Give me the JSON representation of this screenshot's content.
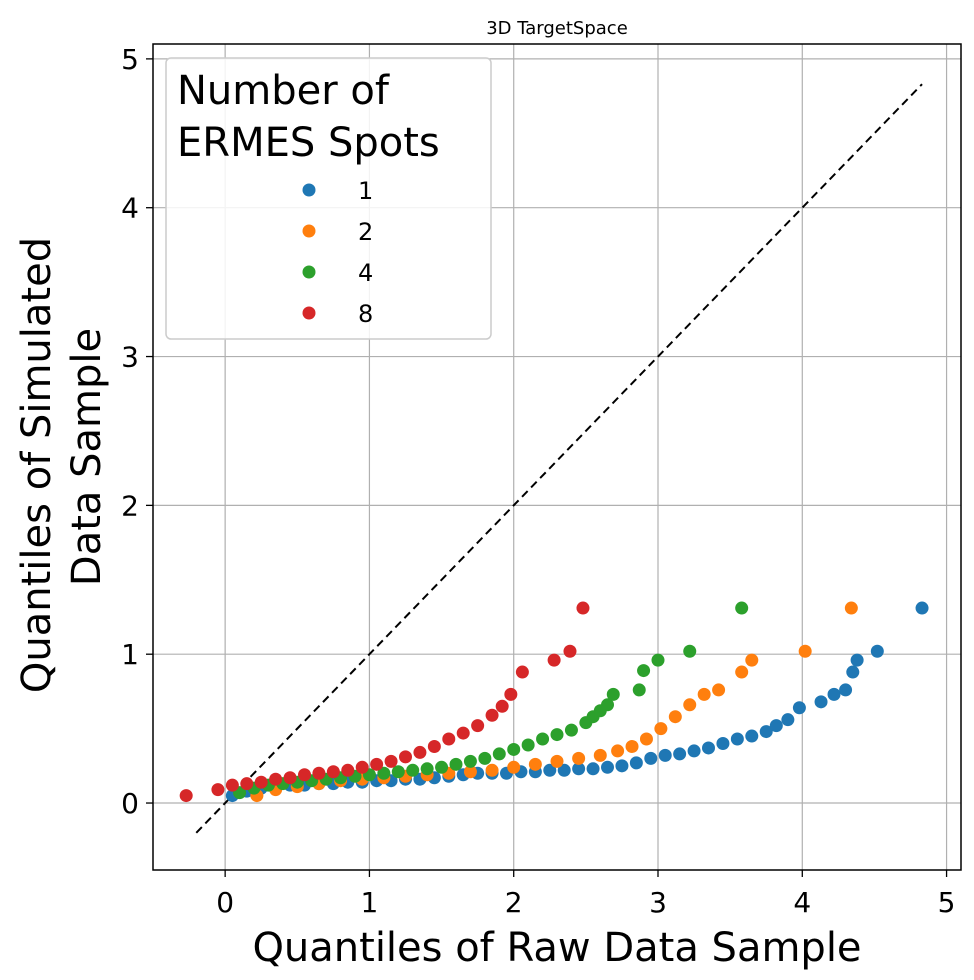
{
  "chart_data": {
    "type": "scatter",
    "title": "3D TargetSpace",
    "xlabel": "Quantiles of Raw Data Sample",
    "ylabel_lines": [
      "Quantiles of Simulated",
      "Data Sample"
    ],
    "xlim": [
      -0.5,
      5.1
    ],
    "ylim": [
      -0.45,
      5.1
    ],
    "xticks": [
      "0",
      "1",
      "2",
      "3",
      "4",
      "5"
    ],
    "yticks": [
      "0",
      "1",
      "2",
      "3",
      "4",
      "5"
    ],
    "grid": true,
    "legend": {
      "placement": "top-left",
      "title_lines": [
        "Number of",
        "ERMES Spots"
      ]
    },
    "reference_line": {
      "style": "dashed",
      "color": "#000000",
      "x": [
        -0.2,
        4.83
      ],
      "y": [
        -0.2,
        4.83
      ]
    },
    "series": [
      {
        "name": "1",
        "color": "#1f77b4",
        "x": [
          0.05,
          0.15,
          0.25,
          0.35,
          0.45,
          0.55,
          0.65,
          0.75,
          0.85,
          0.95,
          1.05,
          1.15,
          1.25,
          1.35,
          1.45,
          1.55,
          1.65,
          1.75,
          1.85,
          1.95,
          2.05,
          2.15,
          2.25,
          2.35,
          2.45,
          2.55,
          2.65,
          2.75,
          2.85,
          2.95,
          3.05,
          3.15,
          3.25,
          3.35,
          3.45,
          3.55,
          3.65,
          3.75,
          3.82,
          3.9,
          3.98,
          4.13,
          4.22,
          4.3,
          4.35,
          4.38,
          4.52,
          4.83
        ],
        "y": [
          0.05,
          0.08,
          0.1,
          0.11,
          0.12,
          0.12,
          0.13,
          0.13,
          0.14,
          0.14,
          0.15,
          0.15,
          0.16,
          0.16,
          0.17,
          0.18,
          0.19,
          0.2,
          0.2,
          0.2,
          0.21,
          0.21,
          0.22,
          0.22,
          0.23,
          0.23,
          0.24,
          0.25,
          0.27,
          0.3,
          0.32,
          0.33,
          0.35,
          0.37,
          0.4,
          0.43,
          0.45,
          0.48,
          0.52,
          0.56,
          0.64,
          0.68,
          0.73,
          0.76,
          0.88,
          0.96,
          1.02,
          1.31
        ]
      },
      {
        "name": "2",
        "color": "#ff7f0e",
        "x": [
          0.22,
          0.35,
          0.5,
          0.65,
          0.8,
          0.95,
          1.1,
          1.25,
          1.4,
          1.55,
          1.7,
          1.85,
          2.0,
          2.15,
          2.3,
          2.45,
          2.6,
          2.72,
          2.82,
          2.92,
          3.02,
          3.12,
          3.22,
          3.32,
          3.42,
          3.58,
          3.65,
          4.02,
          4.34
        ],
        "y": [
          0.05,
          0.09,
          0.11,
          0.13,
          0.15,
          0.16,
          0.17,
          0.18,
          0.19,
          0.2,
          0.21,
          0.22,
          0.24,
          0.26,
          0.28,
          0.3,
          0.32,
          0.35,
          0.38,
          0.43,
          0.5,
          0.58,
          0.66,
          0.73,
          0.76,
          0.88,
          0.96,
          1.02,
          1.31
        ]
      },
      {
        "name": "4",
        "color": "#2ca02c",
        "x": [
          0.1,
          0.2,
          0.3,
          0.4,
          0.5,
          0.6,
          0.7,
          0.8,
          0.9,
          1.0,
          1.1,
          1.2,
          1.3,
          1.4,
          1.5,
          1.6,
          1.7,
          1.8,
          1.9,
          2.0,
          2.1,
          2.2,
          2.3,
          2.4,
          2.5,
          2.55,
          2.6,
          2.65,
          2.69,
          2.87,
          2.9,
          3.0,
          3.22,
          3.58
        ],
        "y": [
          0.07,
          0.1,
          0.12,
          0.13,
          0.14,
          0.15,
          0.16,
          0.17,
          0.18,
          0.19,
          0.2,
          0.21,
          0.22,
          0.23,
          0.24,
          0.26,
          0.28,
          0.3,
          0.33,
          0.36,
          0.39,
          0.43,
          0.46,
          0.49,
          0.54,
          0.58,
          0.62,
          0.66,
          0.73,
          0.76,
          0.89,
          0.96,
          1.02,
          1.31
        ]
      },
      {
        "name": "8",
        "color": "#d62728",
        "x": [
          -0.27,
          -0.05,
          0.05,
          0.15,
          0.25,
          0.35,
          0.45,
          0.55,
          0.65,
          0.75,
          0.85,
          0.95,
          1.05,
          1.15,
          1.25,
          1.35,
          1.45,
          1.55,
          1.65,
          1.75,
          1.85,
          1.92,
          1.98,
          2.06,
          2.28,
          2.39,
          2.48
        ],
        "y": [
          0.05,
          0.09,
          0.12,
          0.13,
          0.14,
          0.16,
          0.17,
          0.19,
          0.2,
          0.21,
          0.22,
          0.24,
          0.26,
          0.28,
          0.31,
          0.34,
          0.38,
          0.43,
          0.47,
          0.52,
          0.59,
          0.65,
          0.73,
          0.88,
          0.96,
          1.02,
          1.31
        ]
      }
    ]
  }
}
